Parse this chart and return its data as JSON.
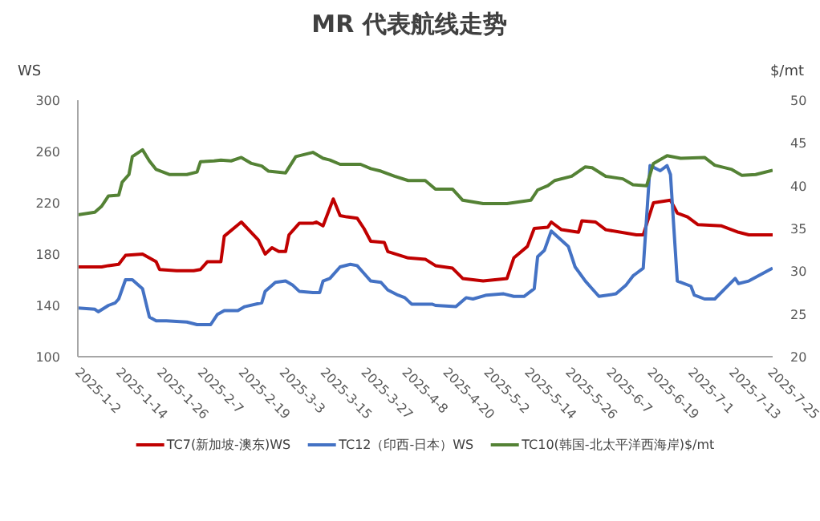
{
  "chart_data": {
    "type": "line",
    "title": "MR  代表航线走势",
    "ylabel": "WS",
    "y2label": "$/mt",
    "xlim": [
      "2025-01-02",
      "2025-07-25"
    ],
    "xticks": [
      {
        "value": "2025-01-02",
        "label": "2025-1-2"
      },
      {
        "value": "2025-01-14",
        "label": "2025-1-14"
      },
      {
        "value": "2025-01-26",
        "label": "2025-1-26"
      },
      {
        "value": "2025-02-07",
        "label": "2025-2-7"
      },
      {
        "value": "2025-02-19",
        "label": "2025-2-19"
      },
      {
        "value": "2025-03-03",
        "label": "2025-3-3"
      },
      {
        "value": "2025-03-15",
        "label": "2025-3-15"
      },
      {
        "value": "2025-03-27",
        "label": "2025-3-27"
      },
      {
        "value": "2025-04-08",
        "label": "2025-4-8"
      },
      {
        "value": "2025-04-20",
        "label": "2025-4-20"
      },
      {
        "value": "2025-05-02",
        "label": "2025-5-2"
      },
      {
        "value": "2025-05-14",
        "label": "2025-5-14"
      },
      {
        "value": "2025-05-26",
        "label": "2025-5-26"
      },
      {
        "value": "2025-06-07",
        "label": "2025-6-7"
      },
      {
        "value": "2025-06-19",
        "label": "2025-6-19"
      },
      {
        "value": "2025-07-01",
        "label": "2025-7-1"
      },
      {
        "value": "2025-07-13",
        "label": "2025-7-13"
      },
      {
        "value": "2025-07-25",
        "label": "2025-7-25"
      }
    ],
    "ylim": [
      100,
      300
    ],
    "yticks": [
      100,
      140,
      180,
      220,
      260,
      300
    ],
    "y2lim": [
      20,
      50
    ],
    "y2ticks": [
      20,
      25,
      30,
      35,
      40,
      45,
      50
    ],
    "grid": false,
    "legend": "bottom",
    "marker": "none",
    "line_style": "solid",
    "series": [
      {
        "name": "TC7(新加坡-澳东)WS",
        "color": "#c00000",
        "x": [
          "2025-01-02",
          "2025-01-09",
          "2025-01-11",
          "2025-01-14",
          "2025-01-16",
          "2025-01-21",
          "2025-01-25",
          "2025-01-26",
          "2025-01-31",
          "2025-02-05",
          "2025-02-07",
          "2025-02-09",
          "2025-02-13",
          "2025-02-14",
          "2025-02-19",
          "2025-02-24",
          "2025-02-26",
          "2025-02-28",
          "2025-03-02",
          "2025-03-04",
          "2025-03-05",
          "2025-03-08",
          "2025-03-12",
          "2025-03-13",
          "2025-03-15",
          "2025-03-18",
          "2025-03-20",
          "2025-03-22",
          "2025-03-25",
          "2025-03-27",
          "2025-03-29",
          "2025-04-02",
          "2025-04-03",
          "2025-04-09",
          "2025-04-14",
          "2025-04-17",
          "2025-04-22",
          "2025-04-25",
          "2025-05-01",
          "2025-05-08",
          "2025-05-10",
          "2025-05-14",
          "2025-05-16",
          "2025-05-20",
          "2025-05-21",
          "2025-05-24",
          "2025-05-29",
          "2025-05-30",
          "2025-06-03",
          "2025-06-06",
          "2025-06-15",
          "2025-06-17",
          "2025-06-20",
          "2025-06-25",
          "2025-06-27",
          "2025-06-30",
          "2025-07-03",
          "2025-07-10",
          "2025-07-15",
          "2025-07-18",
          "2025-07-25"
        ],
        "values": [
          170,
          170,
          171,
          172,
          179,
          180,
          174,
          168,
          167,
          167,
          168,
          174,
          174,
          194,
          205,
          191,
          180,
          185,
          182,
          182,
          195,
          204,
          204,
          205,
          202,
          223,
          210,
          209,
          208,
          200,
          190,
          189,
          182,
          177,
          176,
          171,
          169,
          161,
          159,
          161,
          177,
          186,
          200,
          201,
          205,
          199,
          197,
          206,
          205,
          199,
          195,
          195,
          220,
          222,
          212,
          209,
          203,
          202,
          197,
          195,
          195
        ]
      },
      {
        "name": "TC12（印西-日本）WS",
        "color": "#4472c4",
        "x": [
          "2025-01-02",
          "2025-01-07",
          "2025-01-08",
          "2025-01-11",
          "2025-01-13",
          "2025-01-14",
          "2025-01-16",
          "2025-01-18",
          "2025-01-21",
          "2025-01-23",
          "2025-01-25",
          "2025-01-28",
          "2025-02-03",
          "2025-02-06",
          "2025-02-10",
          "2025-02-12",
          "2025-02-14",
          "2025-02-18",
          "2025-02-20",
          "2025-02-25",
          "2025-02-26",
          "2025-03-01",
          "2025-03-04",
          "2025-03-06",
          "2025-03-08",
          "2025-03-12",
          "2025-03-14",
          "2025-03-15",
          "2025-03-17",
          "2025-03-20",
          "2025-03-23",
          "2025-03-25",
          "2025-03-27",
          "2025-03-29",
          "2025-04-01",
          "2025-04-03",
          "2025-04-06",
          "2025-04-08",
          "2025-04-10",
          "2025-04-16",
          "2025-04-17",
          "2025-04-23",
          "2025-04-26",
          "2025-04-28",
          "2025-05-02",
          "2025-05-07",
          "2025-05-10",
          "2025-05-13",
          "2025-05-16",
          "2025-05-17",
          "2025-05-19",
          "2025-05-21",
          "2025-05-26",
          "2025-05-28",
          "2025-05-31",
          "2025-06-02",
          "2025-06-04",
          "2025-06-09",
          "2025-06-12",
          "2025-06-14",
          "2025-06-15",
          "2025-06-17",
          "2025-06-18",
          "2025-06-19",
          "2025-06-22",
          "2025-06-24",
          "2025-06-25",
          "2025-06-26",
          "2025-06-27",
          "2025-07-01",
          "2025-07-02",
          "2025-07-05",
          "2025-07-08",
          "2025-07-11",
          "2025-07-14",
          "2025-07-15",
          "2025-07-18",
          "2025-07-25"
        ],
        "values": [
          138,
          137,
          135,
          140,
          142,
          145,
          160,
          160,
          153,
          131,
          128,
          128,
          127,
          125,
          125,
          133,
          136,
          136,
          139,
          142,
          151,
          158,
          159,
          156,
          151,
          150,
          150,
          159,
          161,
          170,
          172,
          171,
          165,
          159,
          158,
          152,
          148,
          146,
          141,
          141,
          140,
          139,
          146,
          145,
          148,
          149,
          147,
          147,
          153,
          178,
          183,
          198,
          186,
          170,
          159,
          153,
          147,
          149,
          156,
          163,
          165,
          169,
          209,
          249,
          245,
          249,
          242,
          200,
          159,
          155,
          148,
          145,
          145,
          153,
          161,
          157,
          159,
          169
        ]
      },
      {
        "name": "TC10(韩国-北太平洋西海岸)$/mt",
        "color": "#548235",
        "axis": "y2",
        "x": [
          "2025-01-02",
          "2025-01-07",
          "2025-01-09",
          "2025-01-11",
          "2025-01-14",
          "2025-01-15",
          "2025-01-17",
          "2025-01-18",
          "2025-01-21",
          "2025-01-23",
          "2025-01-25",
          "2025-01-29",
          "2025-02-03",
          "2025-02-06",
          "2025-02-07",
          "2025-02-11",
          "2025-02-13",
          "2025-02-16",
          "2025-02-19",
          "2025-02-22",
          "2025-02-25",
          "2025-02-27",
          "2025-03-04",
          "2025-03-07",
          "2025-03-12",
          "2025-03-15",
          "2025-03-17",
          "2025-03-20",
          "2025-03-26",
          "2025-03-29",
          "2025-04-01",
          "2025-04-05",
          "2025-04-09",
          "2025-04-14",
          "2025-04-17",
          "2025-04-22",
          "2025-04-25",
          "2025-05-01",
          "2025-05-08",
          "2025-05-15",
          "2025-05-17",
          "2025-05-20",
          "2025-05-22",
          "2025-05-27",
          "2025-05-31",
          "2025-06-02",
          "2025-06-06",
          "2025-06-11",
          "2025-06-14",
          "2025-06-18",
          "2025-06-20",
          "2025-06-24",
          "2025-06-28",
          "2025-07-05",
          "2025-07-08",
          "2025-07-13",
          "2025-07-16",
          "2025-07-20",
          "2025-07-25"
        ],
        "values": [
          36.6,
          36.9,
          37.6,
          38.8,
          38.9,
          40.4,
          41.3,
          43.4,
          44.2,
          42.9,
          41.9,
          41.3,
          41.3,
          41.6,
          42.8,
          42.9,
          43.0,
          42.9,
          43.3,
          42.6,
          42.3,
          41.7,
          41.5,
          43.4,
          43.9,
          43.2,
          43.0,
          42.5,
          42.5,
          42.0,
          41.7,
          41.1,
          40.6,
          40.6,
          39.6,
          39.6,
          38.3,
          37.9,
          37.9,
          38.3,
          39.5,
          40.0,
          40.6,
          41.1,
          42.2,
          42.1,
          41.1,
          40.8,
          40.1,
          40.0,
          42.6,
          43.5,
          43.2,
          43.3,
          42.4,
          41.9,
          41.2,
          41.3,
          41.8
        ]
      }
    ]
  }
}
